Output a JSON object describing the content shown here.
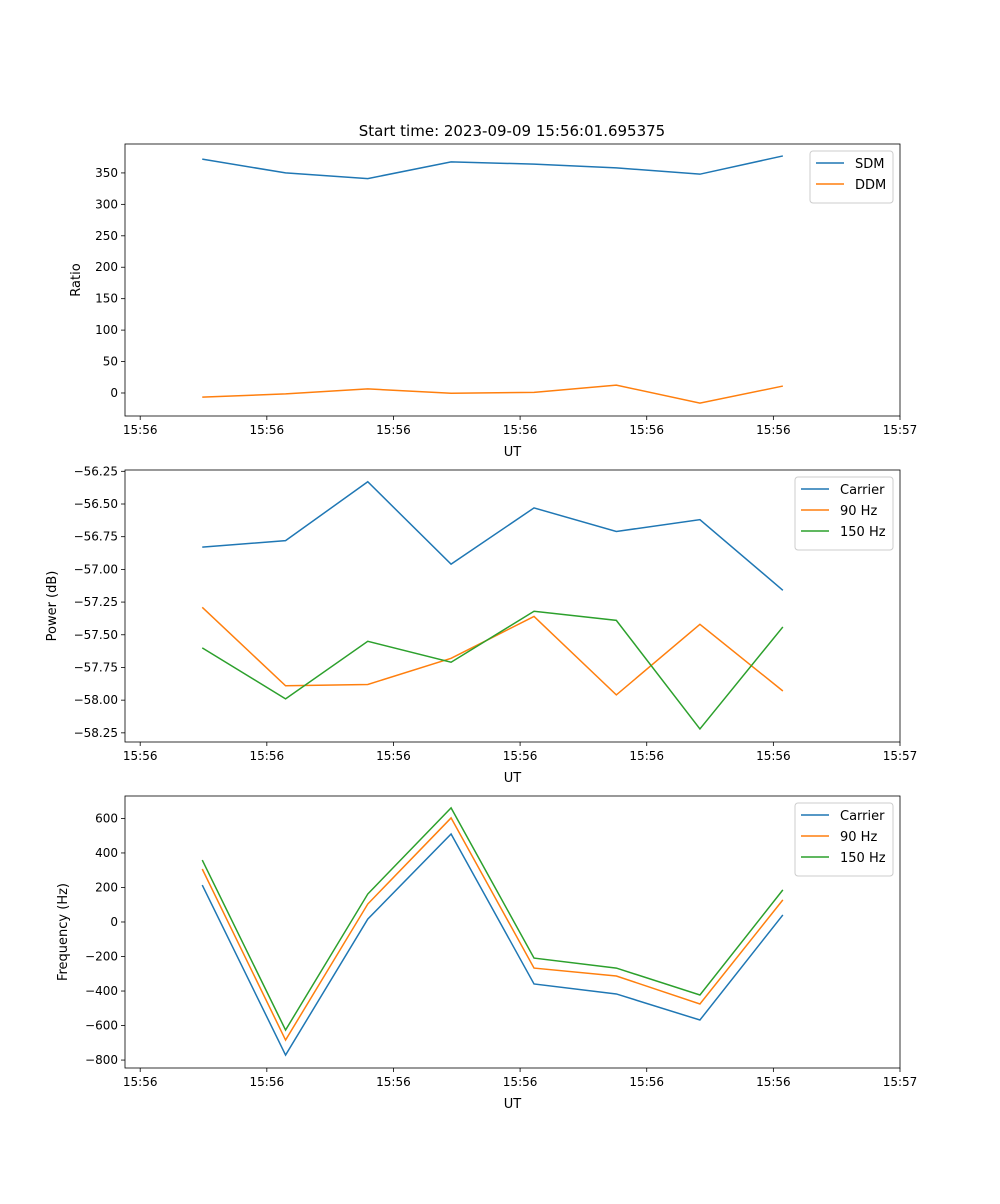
{
  "title": "Start time: 2023-09-09 15:56:01.695375",
  "colors": {
    "blue": "#1f77b4",
    "orange": "#ff7f0e",
    "green": "#2ca02c"
  },
  "chart_data": [
    {
      "type": "line",
      "xlabel": "UT",
      "ylabel": "Ratio",
      "x_ticks": [
        "15:56",
        "15:56",
        "15:56",
        "15:56",
        "15:56",
        "15:56",
        "15:57"
      ],
      "x_tick_units": [
        0,
        1,
        2,
        3,
        4,
        5,
        6
      ],
      "x": [
        0.49,
        1.148,
        1.797,
        2.455,
        3.11,
        3.76,
        4.42,
        5.075
      ],
      "xlim": [
        -0.12,
        6.0
      ],
      "ylim": [
        -36.6,
        396
      ],
      "y_ticks": [
        0,
        50,
        100,
        150,
        200,
        250,
        300,
        350
      ],
      "y_tick_labels": [
        "0",
        "50",
        "100",
        "150",
        "200",
        "250",
        "300",
        "350"
      ],
      "legend": "top-right",
      "series": [
        {
          "name": "SDM",
          "color": "#1f77b4",
          "values": [
            372,
            350,
            341,
            367.5,
            364,
            358,
            348,
            377
          ]
        },
        {
          "name": "DDM",
          "color": "#ff7f0e",
          "values": [
            -6.5,
            -1.5,
            6.5,
            -0.5,
            1,
            12.5,
            -16,
            11
          ]
        }
      ]
    },
    {
      "type": "line",
      "xlabel": "UT",
      "ylabel": "Power (dB)",
      "x_ticks": [
        "15:56",
        "15:56",
        "15:56",
        "15:56",
        "15:56",
        "15:56",
        "15:57"
      ],
      "x_tick_units": [
        0,
        1,
        2,
        3,
        4,
        5,
        6
      ],
      "x": [
        0.49,
        1.148,
        1.797,
        2.455,
        3.11,
        3.76,
        4.42,
        5.075
      ],
      "xlim": [
        -0.12,
        6.0
      ],
      "ylim": [
        -58.32,
        -56.24
      ],
      "y_ticks": [
        -58.25,
        -58.0,
        -57.75,
        -57.5,
        -57.25,
        -57.0,
        -56.75,
        -56.5,
        -56.25
      ],
      "y_tick_labels": [
        "−58.25",
        "−58.00",
        "−57.75",
        "−57.50",
        "−57.25",
        "−57.00",
        "−56.75",
        "−56.50",
        "−56.25"
      ],
      "legend": "top-right",
      "series": [
        {
          "name": "Carrier",
          "color": "#1f77b4",
          "values": [
            -56.83,
            -56.78,
            -56.33,
            -56.96,
            -56.53,
            -56.71,
            -56.62,
            -57.16
          ]
        },
        {
          "name": "90 Hz",
          "color": "#ff7f0e",
          "values": [
            -57.29,
            -57.89,
            -57.88,
            -57.68,
            -57.36,
            -57.96,
            -57.42,
            -57.93
          ]
        },
        {
          "name": "150 Hz",
          "color": "#2ca02c",
          "values": [
            -57.6,
            -57.99,
            -57.55,
            -57.71,
            -57.32,
            -57.39,
            -58.22,
            -57.44
          ]
        }
      ]
    },
    {
      "type": "line",
      "xlabel": "UT",
      "ylabel": "Frequency (Hz)",
      "x_ticks": [
        "15:56",
        "15:56",
        "15:56",
        "15:56",
        "15:56",
        "15:56",
        "15:57"
      ],
      "x_tick_units": [
        0,
        1,
        2,
        3,
        4,
        5,
        6
      ],
      "x": [
        0.49,
        1.148,
        1.797,
        2.455,
        3.11,
        3.76,
        4.42,
        5.075
      ],
      "xlim": [
        -0.12,
        6.0
      ],
      "ylim": [
        -846,
        730
      ],
      "y_ticks": [
        -800,
        -600,
        -400,
        -200,
        0,
        200,
        400,
        600
      ],
      "y_tick_labels": [
        "−800",
        "−600",
        "−400",
        "−200",
        "0",
        "200",
        "400",
        "600"
      ],
      "legend": "top-right",
      "series": [
        {
          "name": "Carrier",
          "color": "#1f77b4",
          "values": [
            214,
            -771,
            17,
            510,
            -359,
            -417,
            -568,
            41
          ]
        },
        {
          "name": "90 Hz",
          "color": "#ff7f0e",
          "values": [
            307,
            -684,
            104,
            603,
            -267,
            -313,
            -475,
            128
          ]
        },
        {
          "name": "150 Hz",
          "color": "#2ca02c",
          "values": [
            359,
            -626,
            162,
            661,
            -209,
            -267,
            -423,
            186
          ]
        }
      ]
    }
  ]
}
